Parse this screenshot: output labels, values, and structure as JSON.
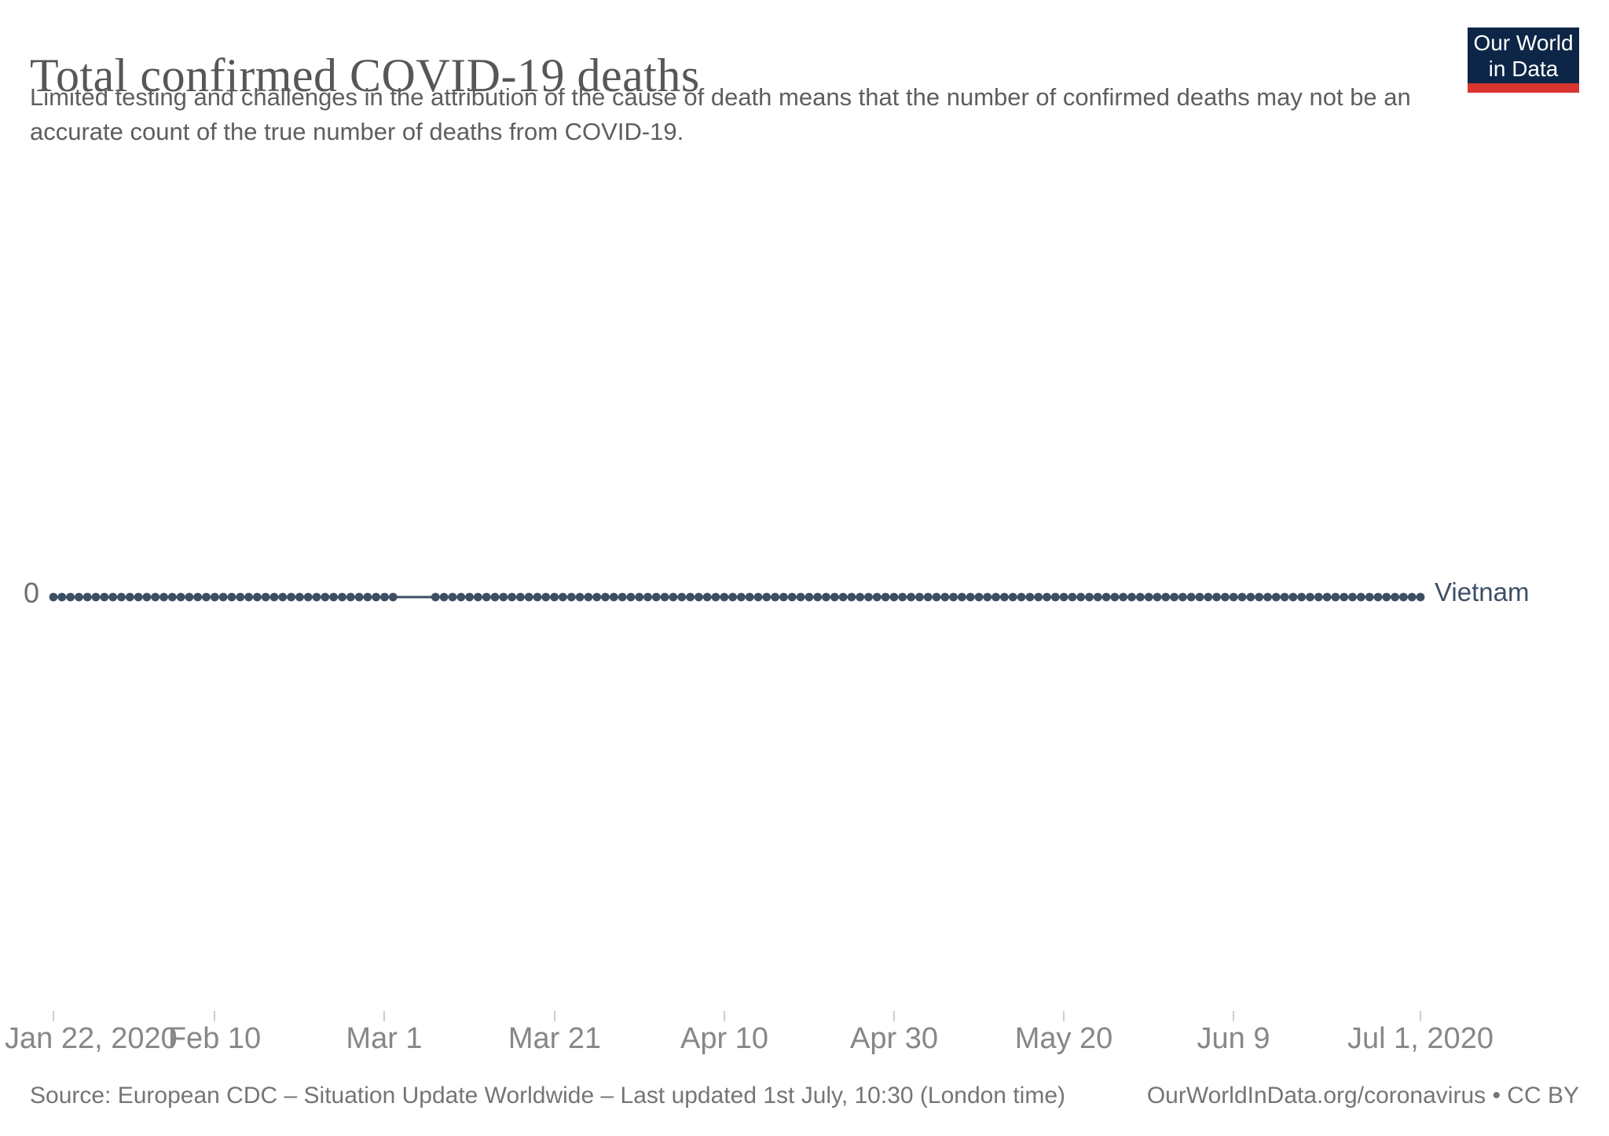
{
  "header": {
    "title": "Total confirmed COVID-19 deaths",
    "subtitle": "Limited testing and challenges in the attribution of the cause of death means that the number of confirmed deaths may not be an accurate count of the true number of deaths from COVID-19."
  },
  "logo": {
    "line1": "Our World",
    "line2": "in Data",
    "bg_color": "#0d2647",
    "bar_color": "#d9352e",
    "text_color": "#ffffff"
  },
  "chart_data": {
    "type": "line",
    "title": "Total confirmed COVID-19 deaths",
    "series": [
      {
        "name": "Vietnam",
        "color": "#3d4e63",
        "start_date": "2020-01-22",
        "end_date": "2020-07-01",
        "frequency": "daily",
        "values": [
          0,
          0,
          0,
          0,
          0,
          0,
          0,
          0,
          0,
          0,
          0,
          0,
          0,
          0,
          0,
          0,
          0,
          0,
          0,
          0,
          0,
          0,
          0,
          0,
          0,
          0,
          0,
          0,
          0,
          0,
          0,
          0,
          0,
          0,
          0,
          0,
          0,
          0,
          0,
          0,
          0,
          0,
          0,
          0,
          0,
          0,
          0,
          0,
          0,
          0,
          0,
          0,
          0,
          0,
          0,
          0,
          0,
          0,
          0,
          0,
          0,
          0,
          0,
          0,
          0,
          0,
          0,
          0,
          0,
          0,
          0,
          0,
          0,
          0,
          0,
          0,
          0,
          0,
          0,
          0,
          0,
          0,
          0,
          0,
          0,
          0,
          0,
          0,
          0,
          0,
          0,
          0,
          0,
          0,
          0,
          0,
          0,
          0,
          0,
          0,
          0,
          0,
          0,
          0,
          0,
          0,
          0,
          0,
          0,
          0,
          0,
          0,
          0,
          0,
          0,
          0,
          0,
          0,
          0,
          0,
          0,
          0,
          0,
          0,
          0,
          0,
          0,
          0,
          0,
          0,
          0,
          0,
          0,
          0,
          0,
          0,
          0,
          0,
          0,
          0,
          0,
          0,
          0,
          0,
          0,
          0,
          0,
          0,
          0,
          0,
          0,
          0,
          0,
          0,
          0,
          0,
          0,
          0,
          0,
          0,
          0,
          0
        ]
      }
    ],
    "x_axis": {
      "tick_labels": [
        "Jan 22, 2020",
        "Feb 10",
        "Mar 1",
        "Mar 21",
        "Apr 10",
        "Apr 30",
        "May 20",
        "Jun 9",
        "Jul 1, 2020"
      ],
      "tick_day_offsets": [
        0,
        19,
        39,
        59,
        79,
        99,
        119,
        139,
        161
      ],
      "range_days": 161
    },
    "y_axis": {
      "tick_labels": [
        "0"
      ]
    },
    "grid": false,
    "legend_position": "entity label at end of line",
    "marker_gap_day_indices": [
      41,
      42,
      43,
      44
    ]
  },
  "footer": {
    "source": "Source: European CDC – Situation Update Worldwide – Last updated 1st July, 10:30 (London time)",
    "credit": "OurWorldInData.org/coronavirus • CC BY"
  }
}
